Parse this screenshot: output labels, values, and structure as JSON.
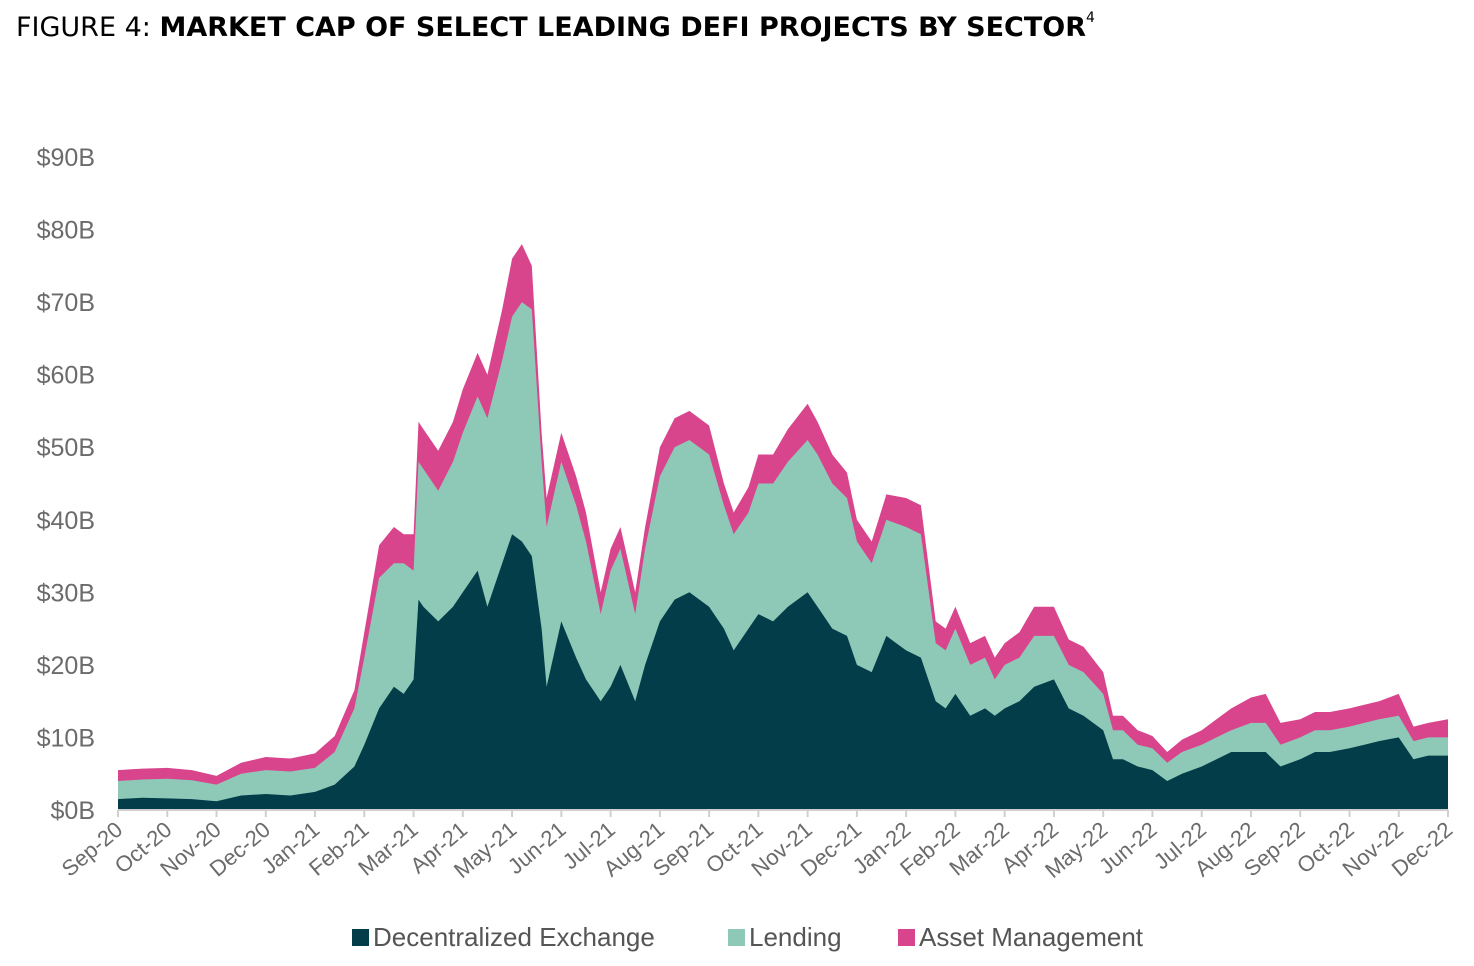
{
  "figure": {
    "label": "FIGURE 4:",
    "title": "MARKET CAP OF SELECT LEADING DEFI PROJECTS BY SECTOR",
    "footnote": "4"
  },
  "chart_data": {
    "type": "area",
    "stacked": true,
    "title": "MARKET CAP OF SELECT LEADING DEFI PROJECTS BY SECTOR",
    "xlabel": "",
    "ylabel": "",
    "ylim": [
      0,
      90
    ],
    "y_unit": "billions USD",
    "y_ticks": [
      "$0B",
      "$10B",
      "$20B",
      "$30B",
      "$40B",
      "$50B",
      "$60B",
      "$70B",
      "$80B",
      "$90B"
    ],
    "x_ticks": [
      "Sep-20",
      "Oct-20",
      "Nov-20",
      "Dec-20",
      "Jan-21",
      "Feb-21",
      "Mar-21",
      "Apr-21",
      "May-21",
      "Jun-21",
      "Jul-21",
      "Aug-21",
      "Sep-21",
      "Oct-21",
      "Nov-21",
      "Dec-21",
      "Jan-22",
      "Feb-22",
      "Mar-22",
      "Apr-22",
      "May-22",
      "Jun-22",
      "Jul-22",
      "Aug-22",
      "Sep-22",
      "Oct-22",
      "Nov-22",
      "Dec-22"
    ],
    "legend_position": "bottom",
    "series": [
      {
        "name": "Decentralized Exchange",
        "color": "#043d4a",
        "x": [
          0,
          0.5,
          1,
          1.5,
          2,
          2.5,
          3,
          3.5,
          4,
          4.4,
          4.8,
          5,
          5.3,
          5.6,
          5.8,
          6,
          6.1,
          6.2,
          6.5,
          6.8,
          7,
          7.3,
          7.5,
          7.8,
          8,
          8.2,
          8.4,
          8.6,
          8.7,
          9,
          9.3,
          9.5,
          9.8,
          10,
          10.2,
          10.5,
          10.7,
          11,
          11.3,
          11.6,
          12,
          12.3,
          12.5,
          12.8,
          13,
          13.3,
          13.6,
          14,
          14.2,
          14.5,
          14.8,
          15,
          15.3,
          15.6,
          16,
          16.3,
          16.6,
          16.8,
          17,
          17.3,
          17.6,
          17.8,
          18,
          18.3,
          18.6,
          19,
          19.3,
          19.6,
          20,
          20.2,
          20.4,
          20.7,
          21,
          21.3,
          21.6,
          22,
          22.3,
          22.6,
          23,
          23.3,
          23.6,
          24,
          24.3,
          24.6,
          25,
          25.3,
          25.6,
          26,
          26.3,
          26.6,
          27
        ],
        "values": [
          1.5,
          1.7,
          1.6,
          1.5,
          1.2,
          2.0,
          2.2,
          2.0,
          2.5,
          3.5,
          6,
          9,
          14,
          17,
          16,
          18,
          29,
          28,
          26,
          28,
          30,
          33,
          28,
          34,
          38,
          37,
          35,
          25,
          17,
          26,
          21,
          18,
          15,
          17,
          20,
          15,
          20,
          26,
          29,
          30,
          28,
          25,
          22,
          25,
          27,
          26,
          28,
          30,
          28,
          25,
          24,
          20,
          19,
          24,
          22,
          21,
          15,
          14,
          16,
          13,
          14,
          13,
          14,
          15,
          17,
          18,
          14,
          13,
          11,
          7,
          7,
          6,
          5.5,
          4,
          5,
          6,
          7,
          8,
          8,
          8,
          6,
          7,
          8,
          8,
          8.5,
          9,
          9.5,
          10,
          7,
          7.5,
          7.5
        ]
      },
      {
        "name": "Lending",
        "color": "#8ec9b8",
        "x": [
          0,
          0.5,
          1,
          1.5,
          2,
          2.5,
          3,
          3.5,
          4,
          4.4,
          4.8,
          5,
          5.3,
          5.6,
          5.8,
          6,
          6.1,
          6.2,
          6.5,
          6.8,
          7,
          7.3,
          7.5,
          7.8,
          8,
          8.2,
          8.4,
          8.6,
          8.7,
          9,
          9.3,
          9.5,
          9.8,
          10,
          10.2,
          10.5,
          10.7,
          11,
          11.3,
          11.6,
          12,
          12.3,
          12.5,
          12.8,
          13,
          13.3,
          13.6,
          14,
          14.2,
          14.5,
          14.8,
          15,
          15.3,
          15.6,
          16,
          16.3,
          16.6,
          16.8,
          17,
          17.3,
          17.6,
          17.8,
          18,
          18.3,
          18.6,
          19,
          19.3,
          19.6,
          20,
          20.2,
          20.4,
          20.7,
          21,
          21.3,
          21.6,
          22,
          22.3,
          22.6,
          23,
          23.3,
          23.6,
          24,
          24.3,
          24.6,
          25,
          25.3,
          25.6,
          26,
          26.3,
          26.6,
          27
        ],
        "values": [
          2.5,
          2.5,
          2.7,
          2.6,
          2.3,
          3.0,
          3.3,
          3.3,
          3.3,
          4.5,
          8,
          12,
          18,
          17,
          18,
          15,
          19,
          19,
          18,
          20,
          22,
          24,
          26,
          28,
          30,
          33,
          34,
          23,
          22,
          22,
          21,
          19,
          12,
          16,
          16,
          12,
          16,
          20,
          21,
          21,
          21,
          17,
          16,
          16,
          18,
          19,
          20,
          21,
          21,
          20,
          19,
          17,
          15,
          16,
          17,
          17,
          8,
          8,
          9,
          7,
          7,
          5,
          6,
          6,
          7,
          6,
          6,
          6,
          5,
          4,
          4,
          3,
          3,
          2.5,
          3,
          3,
          3,
          3,
          4,
          4,
          3,
          3,
          3,
          3,
          3,
          3,
          3,
          3,
          2.5,
          2.5,
          2.5
        ]
      },
      {
        "name": "Asset Management",
        "color": "#d9458d",
        "x": [
          0,
          0.5,
          1,
          1.5,
          2,
          2.5,
          3,
          3.5,
          4,
          4.4,
          4.8,
          5,
          5.3,
          5.6,
          5.8,
          6,
          6.1,
          6.2,
          6.5,
          6.8,
          7,
          7.3,
          7.5,
          7.8,
          8,
          8.2,
          8.4,
          8.6,
          8.7,
          9,
          9.3,
          9.5,
          9.8,
          10,
          10.2,
          10.5,
          10.7,
          11,
          11.3,
          11.6,
          12,
          12.3,
          12.5,
          12.8,
          13,
          13.3,
          13.6,
          14,
          14.2,
          14.5,
          14.8,
          15,
          15.3,
          15.6,
          16,
          16.3,
          16.6,
          16.8,
          17,
          17.3,
          17.6,
          17.8,
          18,
          18.3,
          18.6,
          19,
          19.3,
          19.6,
          20,
          20.2,
          20.4,
          20.7,
          21,
          21.3,
          21.6,
          22,
          22.3,
          22.6,
          23,
          23.3,
          23.6,
          24,
          24.3,
          24.6,
          25,
          25.3,
          25.6,
          26,
          26.3,
          26.6,
          27
        ],
        "values": [
          1.5,
          1.5,
          1.5,
          1.4,
          1.2,
          1.5,
          1.8,
          1.8,
          2.0,
          2.2,
          2.5,
          3.5,
          4.5,
          5,
          4,
          5,
          5.5,
          5.5,
          5.5,
          5.5,
          6,
          6,
          6,
          7,
          8,
          8,
          6,
          4,
          4,
          4,
          4,
          4,
          3,
          3,
          3,
          3,
          3,
          4,
          4,
          4,
          4,
          3,
          3,
          3.5,
          4,
          4,
          4.5,
          5,
          4.5,
          4,
          3.5,
          3,
          3,
          3.5,
          4,
          4,
          3,
          3,
          3,
          3,
          3,
          3,
          3,
          3.5,
          4,
          4,
          3.5,
          3.5,
          3,
          2,
          2,
          2,
          1.7,
          1.5,
          1.7,
          2,
          2.5,
          3,
          3.5,
          4,
          3,
          2.5,
          2.5,
          2.5,
          2.5,
          2.5,
          2.5,
          3,
          2,
          2,
          2.5
        ]
      }
    ]
  }
}
